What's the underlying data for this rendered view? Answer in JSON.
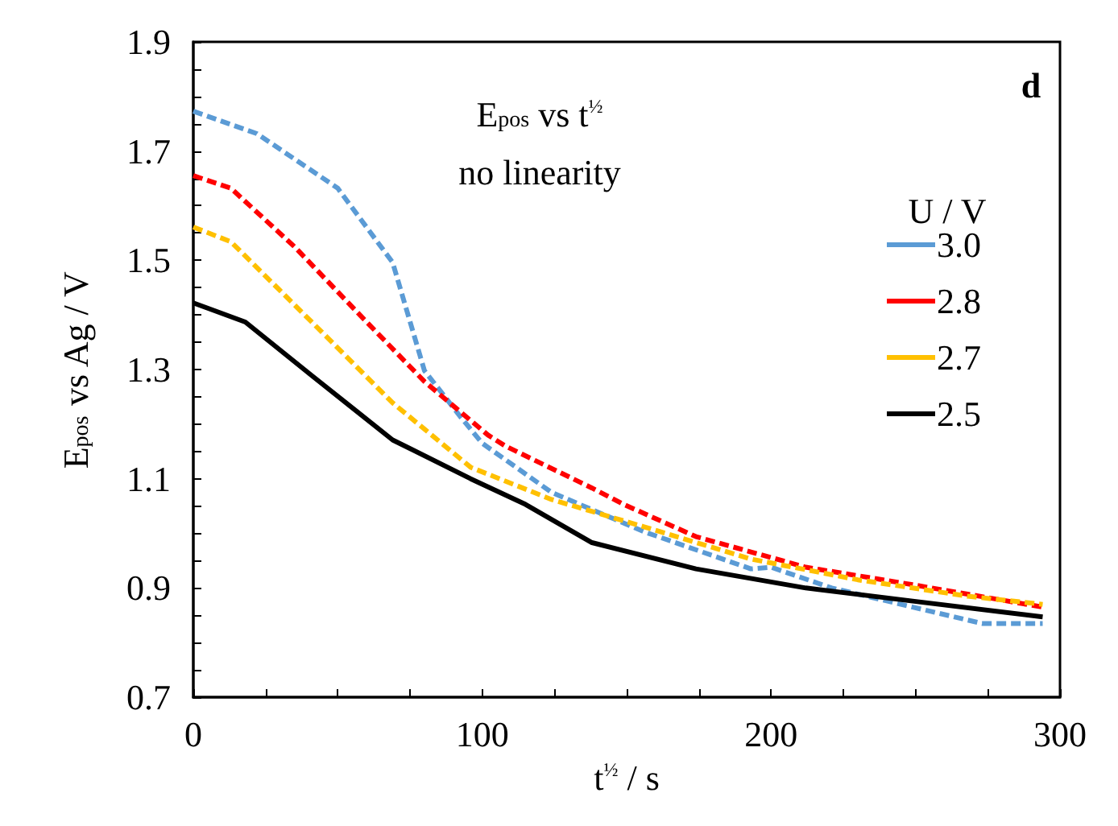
{
  "chart_data": {
    "type": "line",
    "xlabel": "t$^{½}$ / s",
    "ylabel": "E$_{pos}$ vs Ag / V",
    "legend_title": "U / V",
    "annotations": [
      "E$_{pos}$ vs t$^{½}$",
      "no linearity",
      "d"
    ],
    "xlim": [
      0,
      300
    ],
    "xticks": [
      0,
      {
        "value": 25,
        "label": null
      },
      {
        "value": 50,
        "label": null
      },
      {
        "value": 75,
        "label": null
      },
      100,
      {
        "value": 125,
        "label": null
      },
      {
        "value": 150,
        "label": null
      },
      {
        "value": 175,
        "label": null
      },
      200,
      {
        "value": 225,
        "label": null
      },
      {
        "value": 250,
        "label": null
      },
      {
        "value": 275,
        "label": null
      },
      300
    ],
    "ylim": [
      0.7,
      1.9
    ],
    "yticks": [
      0.7,
      {
        "value": 0.75,
        "label": null
      },
      {
        "value": 0.8,
        "label": null
      },
      {
        "value": 0.85,
        "label": null
      },
      0.9,
      {
        "value": 0.95,
        "label": null
      },
      {
        "value": 1.0,
        "label": null
      },
      {
        "value": 1.05,
        "label": null
      },
      1.1,
      {
        "value": 1.15,
        "label": null
      },
      {
        "value": 1.2,
        "label": null
      },
      {
        "value": 1.25,
        "label": null
      },
      1.3,
      {
        "value": 1.35,
        "label": null
      },
      {
        "value": 1.4,
        "label": null
      },
      {
        "value": 1.45,
        "label": null
      },
      1.5,
      {
        "value": 1.55,
        "label": null
      },
      {
        "value": 1.6,
        "label": null
      },
      {
        "value": 1.65,
        "label": null
      },
      1.7,
      {
        "value": 1.75,
        "label": null
      },
      {
        "value": 1.8,
        "label": null
      },
      {
        "value": 1.85,
        "label": null
      },
      1.9
    ],
    "grid": false,
    "legend": "top right",
    "marker": "none",
    "series": [
      {
        "name": "3.0",
        "color": "#5b9bd5",
        "line_style": "dashed",
        "x": [
          0,
          22,
          50,
          69,
          80,
          93,
          100,
          124,
          156,
          193,
          200,
          221,
          249,
          273,
          294
        ],
        "values": [
          1.773,
          1.732,
          1.632,
          1.496,
          1.298,
          1.21,
          1.165,
          1.075,
          1.003,
          0.935,
          0.938,
          0.9,
          0.865,
          0.835,
          0.835
        ]
      },
      {
        "name": "2.8",
        "color": "#ff0000",
        "line_style": "dashed",
        "x": [
          0,
          13,
          35,
          60,
          80,
          102,
          108,
          138,
          149,
          174,
          212,
          249,
          294
        ],
        "values": [
          1.655,
          1.632,
          1.525,
          1.387,
          1.278,
          1.18,
          1.16,
          1.083,
          1.053,
          0.994,
          0.938,
          0.906,
          0.865
        ]
      },
      {
        "name": "2.7",
        "color": "#ffc000",
        "line_style": "dashed",
        "x": [
          0,
          13,
          41,
          69,
          96,
          124,
          156,
          193,
          230,
          268,
          294
        ],
        "values": [
          1.561,
          1.534,
          1.387,
          1.239,
          1.121,
          1.062,
          1.012,
          0.953,
          0.915,
          0.885,
          0.87
        ]
      },
      {
        "name": "2.5",
        "color": "#000000",
        "line_style": "solid",
        "x": [
          0,
          18,
          41,
          69,
          96,
          115,
          138,
          174,
          212,
          249,
          294
        ],
        "values": [
          1.422,
          1.387,
          1.289,
          1.171,
          1.1,
          1.053,
          0.983,
          0.935,
          0.9,
          0.876,
          0.847
        ]
      }
    ]
  }
}
